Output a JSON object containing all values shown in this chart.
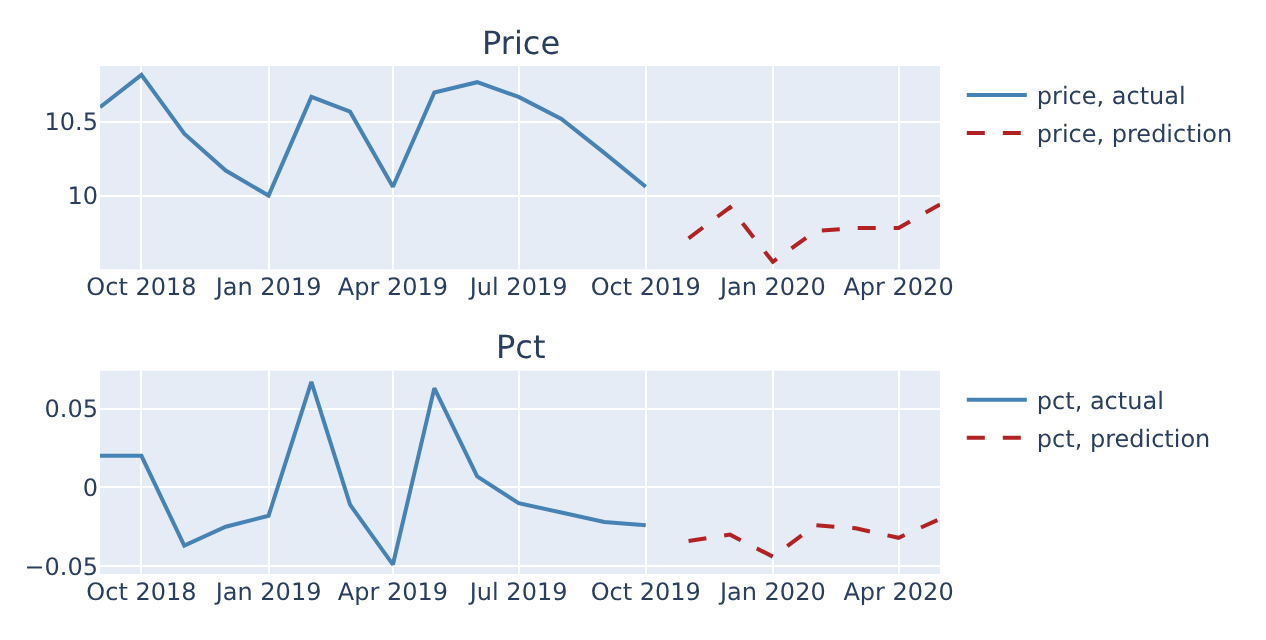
{
  "chart_data": [
    {
      "type": "line",
      "title": "Price",
      "xlim": [
        "2018-09-01",
        "2020-05-01"
      ],
      "xticks": [
        {
          "value": "2018-10-01",
          "label": "Oct 2018"
        },
        {
          "value": "2019-01-01",
          "label": "Jan 2019"
        },
        {
          "value": "2019-04-01",
          "label": "Apr 2019"
        },
        {
          "value": "2019-07-01",
          "label": "Jul 2019"
        },
        {
          "value": "2019-10-01",
          "label": "Oct 2019"
        },
        {
          "value": "2020-01-01",
          "label": "Jan 2020"
        },
        {
          "value": "2020-04-01",
          "label": "Apr 2020"
        }
      ],
      "ylim": [
        9.5,
        10.88
      ],
      "yticks": [
        10,
        10.5
      ],
      "grid": true,
      "legend": "right",
      "series": [
        {
          "name": "price, actual",
          "color": "#4682b4",
          "line_style": "solid",
          "x": [
            "2018-09-01",
            "2018-10-01",
            "2018-11-01",
            "2018-12-01",
            "2019-01-01",
            "2019-02-01",
            "2019-03-01",
            "2019-04-01",
            "2019-05-01",
            "2019-06-01",
            "2019-07-01",
            "2019-08-01",
            "2019-09-01",
            "2019-10-01"
          ],
          "values": [
            10.6,
            10.82,
            10.42,
            10.17,
            10.0,
            10.67,
            10.57,
            10.06,
            10.7,
            10.77,
            10.67,
            10.52,
            10.29,
            10.06
          ]
        },
        {
          "name": "price, prediction",
          "color": "#b22222",
          "line_style": "dashed",
          "x": [
            "2019-11-01",
            "2019-12-01",
            "2020-01-01",
            "2020-02-01",
            "2020-03-01",
            "2020-04-01",
            "2020-05-01"
          ],
          "values": [
            9.71,
            9.92,
            9.55,
            9.76,
            9.78,
            9.78,
            9.94
          ]
        }
      ]
    },
    {
      "type": "line",
      "title": "Pct",
      "xlim": [
        "2018-09-01",
        "2020-05-01"
      ],
      "xticks": [
        {
          "value": "2018-10-01",
          "label": "Oct 2018"
        },
        {
          "value": "2019-01-01",
          "label": "Jan 2019"
        },
        {
          "value": "2019-04-01",
          "label": "Apr 2019"
        },
        {
          "value": "2019-07-01",
          "label": "Jul 2019"
        },
        {
          "value": "2019-10-01",
          "label": "Oct 2019"
        },
        {
          "value": "2020-01-01",
          "label": "Jan 2020"
        },
        {
          "value": "2020-04-01",
          "label": "Apr 2020"
        }
      ],
      "ylim": [
        -0.055,
        0.074
      ],
      "yticks": [
        {
          "value": -0.05,
          "label": "−0.05"
        },
        0,
        0.05
      ],
      "grid": true,
      "legend": "right",
      "series": [
        {
          "name": "pct, actual",
          "color": "#4682b4",
          "line_style": "solid",
          "x": [
            "2018-09-01",
            "2018-10-01",
            "2018-11-01",
            "2018-12-01",
            "2019-01-01",
            "2019-02-01",
            "2019-03-01",
            "2019-04-01",
            "2019-05-01",
            "2019-06-01",
            "2019-07-01",
            "2019-08-01",
            "2019-09-01",
            "2019-10-01"
          ],
          "values": [
            0.02,
            0.02,
            -0.037,
            -0.025,
            -0.018,
            0.067,
            -0.011,
            -0.049,
            0.063,
            0.007,
            -0.01,
            -0.016,
            -0.022,
            -0.024
          ]
        },
        {
          "name": "pct, prediction",
          "color": "#b22222",
          "line_style": "dashed",
          "x": [
            "2019-11-01",
            "2019-12-01",
            "2020-01-01",
            "2020-02-01",
            "2020-03-01",
            "2020-04-01",
            "2020-05-01"
          ],
          "values": [
            -0.034,
            -0.03,
            -0.044,
            -0.024,
            -0.026,
            -0.032,
            -0.02
          ]
        }
      ]
    }
  ]
}
